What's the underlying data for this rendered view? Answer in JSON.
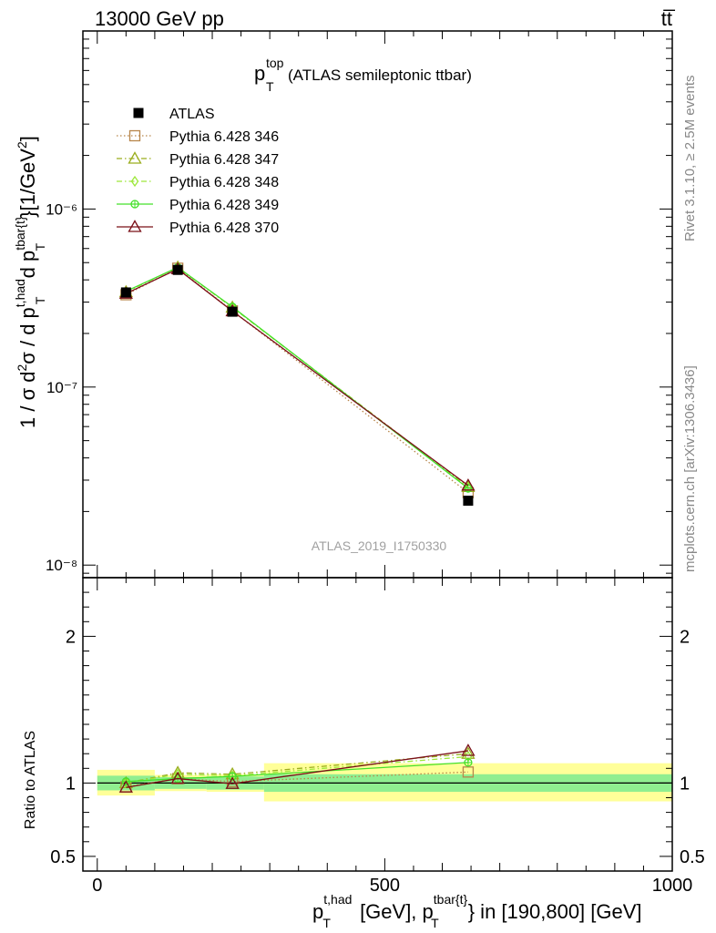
{
  "header": {
    "energy": "13000 GeV pp",
    "process": "tt̅"
  },
  "main_title": {
    "base": "p",
    "sup": "top",
    "sub": "T",
    "rest": " (ATLAS semileptonic ttbar)"
  },
  "side_labels": {
    "rivet": "Rivet 3.1.10, ≥ 2.5M events",
    "mcplots": "mcplots.cern.ch [arXiv:1306.3436]"
  },
  "analysis_id": "ATLAS_2019_I1750330",
  "chart_data": [
    {
      "type": "scatter",
      "panel": "main",
      "yscale": "log",
      "xlim": [
        -25,
        1000
      ],
      "ylim": [
        8.5e-09,
        1e-05
      ],
      "ylabel": "1 / σ d²σ / d p_T^{t,had} d p_T^{tbar{t}} [1/GeV²]",
      "ytick_labels": [
        "10⁻⁸",
        "10⁻⁷",
        "10⁻⁶"
      ],
      "ytick_values": [
        1e-08,
        1e-07,
        1e-06
      ],
      "x": [
        50,
        140,
        235,
        645
      ],
      "bin_edges": [
        [
          0,
          100
        ],
        [
          100,
          190
        ],
        [
          190,
          290
        ],
        [
          290,
          1000
        ]
      ],
      "series": [
        {
          "name": "ATLAS",
          "color": "#000000",
          "marker": "filled-square",
          "line": "none",
          "values": [
            3.4e-07,
            4.55e-07,
            2.65e-07,
            2.3e-08
          ]
        },
        {
          "name": "Pythia 6.428 346",
          "color": "#b8864b",
          "marker": "open-square",
          "line": "dotted",
          "values": [
            3.3e-07,
            4.65e-07,
            2.68e-07,
            2.55e-08
          ]
        },
        {
          "name": "Pythia 6.428 347",
          "color": "#9aad1e",
          "marker": "open-triangle",
          "line": "dashdot",
          "values": [
            3.42e-07,
            4.7e-07,
            2.8e-07,
            2.75e-08
          ]
        },
        {
          "name": "Pythia 6.428 348",
          "color": "#9de83a",
          "marker": "open-diamond",
          "line": "dashdot",
          "values": [
            3.42e-07,
            4.7e-07,
            2.8e-07,
            2.72e-08
          ]
        },
        {
          "name": "Pythia 6.428 349",
          "color": "#44e02a",
          "marker": "open-circle-cross",
          "line": "solid",
          "values": [
            3.45e-07,
            4.7e-07,
            2.82e-07,
            2.7e-08
          ]
        },
        {
          "name": "Pythia 6.428 370",
          "color": "#7a1018",
          "marker": "open-triangle",
          "line": "solid",
          "values": [
            3.35e-07,
            4.6e-07,
            2.67e-07,
            2.8e-08
          ]
        }
      ]
    },
    {
      "type": "scatter",
      "panel": "ratio",
      "xlim": [
        -25,
        1000
      ],
      "ylim": [
        0.4,
        2.4
      ],
      "ylabel": "Ratio to ATLAS",
      "ytick_labels": [
        "0.5",
        "1",
        "2"
      ],
      "ytick_values": [
        0.5,
        1,
        2
      ],
      "xtick_labels": [
        "0",
        "500",
        "1000"
      ],
      "xtick_values": [
        0,
        500,
        1000
      ],
      "xlabel": "p_T^{t,had} [GeV], p_T^{tbar{t}} in [190,800] [GeV]",
      "x": [
        50,
        140,
        235,
        645
      ],
      "bands": [
        {
          "xmin": 0,
          "xmax": 100,
          "inner": [
            0.95,
            1.05
          ],
          "outer": [
            0.915,
            1.09
          ]
        },
        {
          "xmin": 100,
          "xmax": 190,
          "inner": [
            0.96,
            1.04
          ],
          "outer": [
            0.945,
            1.055
          ]
        },
        {
          "xmin": 190,
          "xmax": 290,
          "inner": [
            0.955,
            1.045
          ],
          "outer": [
            0.94,
            1.06
          ]
        },
        {
          "xmin": 290,
          "xmax": 1000,
          "inner": [
            0.94,
            1.06
          ],
          "outer": [
            0.875,
            1.135
          ]
        }
      ],
      "series": [
        {
          "name": "Pythia 6.428 346",
          "color": "#b8864b",
          "marker": "open-square",
          "line": "dotted",
          "values": [
            0.975,
            1.03,
            1.01,
            1.075
          ]
        },
        {
          "name": "Pythia 6.428 347",
          "color": "#9aad1e",
          "marker": "open-triangle",
          "line": "dashdot",
          "values": [
            1.0,
            1.07,
            1.06,
            1.2
          ]
        },
        {
          "name": "Pythia 6.428 348",
          "color": "#9de83a",
          "marker": "open-diamond",
          "line": "dashdot",
          "values": [
            1.0,
            1.06,
            1.05,
            1.18
          ]
        },
        {
          "name": "Pythia 6.428 349",
          "color": "#44e02a",
          "marker": "open-circle-cross",
          "line": "solid",
          "values": [
            1.01,
            1.03,
            1.045,
            1.14
          ]
        },
        {
          "name": "Pythia 6.428 370",
          "color": "#7a1018",
          "marker": "open-triangle",
          "line": "solid",
          "values": [
            0.97,
            1.03,
            0.995,
            1.22
          ]
        }
      ]
    }
  ]
}
